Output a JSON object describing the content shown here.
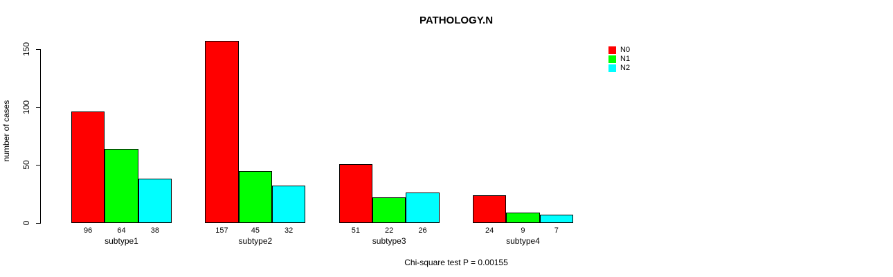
{
  "chart_data": {
    "type": "bar",
    "title": "PATHOLOGY.N",
    "ylabel": "number of cases",
    "xlabel": "",
    "categories": [
      "subtype1",
      "subtype2",
      "subtype3",
      "subtype4"
    ],
    "series": [
      {
        "name": "N0",
        "color": "#ff0000",
        "values": [
          96,
          157,
          51,
          24
        ]
      },
      {
        "name": "N1",
        "color": "#00ff00",
        "values": [
          64,
          45,
          22,
          9
        ]
      },
      {
        "name": "N2",
        "color": "#00ffff",
        "values": [
          38,
          32,
          26,
          7
        ]
      }
    ],
    "yticks": [
      0,
      50,
      100,
      150
    ],
    "ylim": [
      0,
      157
    ],
    "grid": false,
    "legend_position": "top-right",
    "bar_value_labels": true,
    "annotation": "Chi-square test P = 0.00155",
    "axis_color": "#000000",
    "background_color": "#ffffff"
  }
}
